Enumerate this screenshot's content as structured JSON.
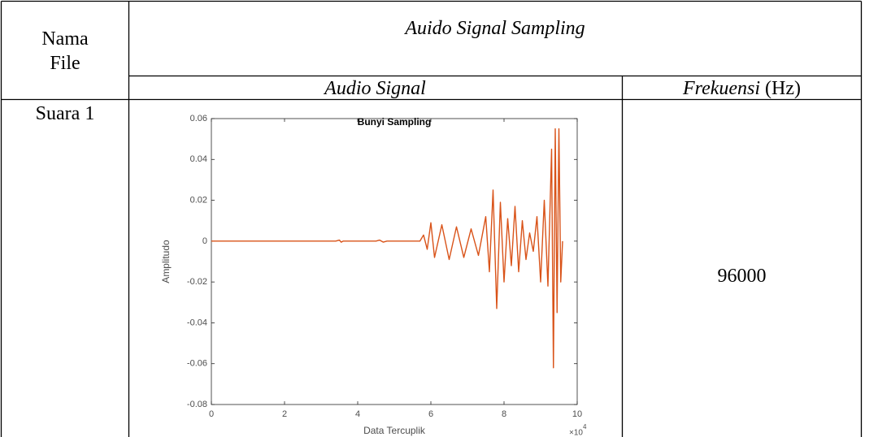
{
  "table": {
    "headers": {
      "file": "Nama File",
      "group": "Auido Signal Sampling",
      "signal": "Audio Signal",
      "frequency": "Frekuensi",
      "frequency_unit": "(Hz)"
    },
    "rows": [
      {
        "file": "Suara 1",
        "frequency": 96000
      }
    ]
  },
  "chart_data": {
    "type": "line",
    "title": "Bunyi Sampling",
    "x_label": "Data Tercuplik",
    "y_label": "Amplitudo",
    "x_multiplier": "×10",
    "x_exponent": "4",
    "x": [
      0,
      3.4,
      3.5,
      3.55,
      3.6,
      4.5,
      4.6,
      4.7,
      4.8,
      5.7,
      5.8,
      5.9,
      6.0,
      6.1,
      6.3,
      6.5,
      6.7,
      6.9,
      7.1,
      7.3,
      7.5,
      7.6,
      7.7,
      7.8,
      7.9,
      8.0,
      8.1,
      8.2,
      8.3,
      8.4,
      8.5,
      8.6,
      8.7,
      8.8,
      8.9,
      9.0,
      9.1,
      9.2,
      9.3,
      9.35,
      9.4,
      9.45,
      9.5,
      9.55,
      9.6
    ],
    "series": [
      {
        "color": "#d95319",
        "values": [
          0,
          0,
          0.0005,
          -0.0005,
          0,
          0,
          0.0005,
          -0.0005,
          0,
          0,
          0.003,
          -0.004,
          0.009,
          -0.008,
          0.008,
          -0.009,
          0.007,
          -0.008,
          0.006,
          -0.007,
          0.012,
          -0.015,
          0.025,
          -0.033,
          0.019,
          -0.02,
          0.011,
          -0.012,
          0.017,
          -0.015,
          0.01,
          -0.009,
          0.004,
          -0.005,
          0.012,
          -0.02,
          0.02,
          -0.022,
          0.045,
          -0.062,
          0.055,
          -0.035,
          0.055,
          -0.02,
          0
        ]
      }
    ],
    "xlim": [
      0,
      10
    ],
    "xticks": [
      0,
      2,
      4,
      6,
      8,
      10
    ],
    "ylim": [
      -0.08,
      0.06
    ],
    "yticks": [
      -0.08,
      -0.06,
      -0.04,
      -0.02,
      0,
      0.02,
      0.04,
      0.06
    ]
  }
}
